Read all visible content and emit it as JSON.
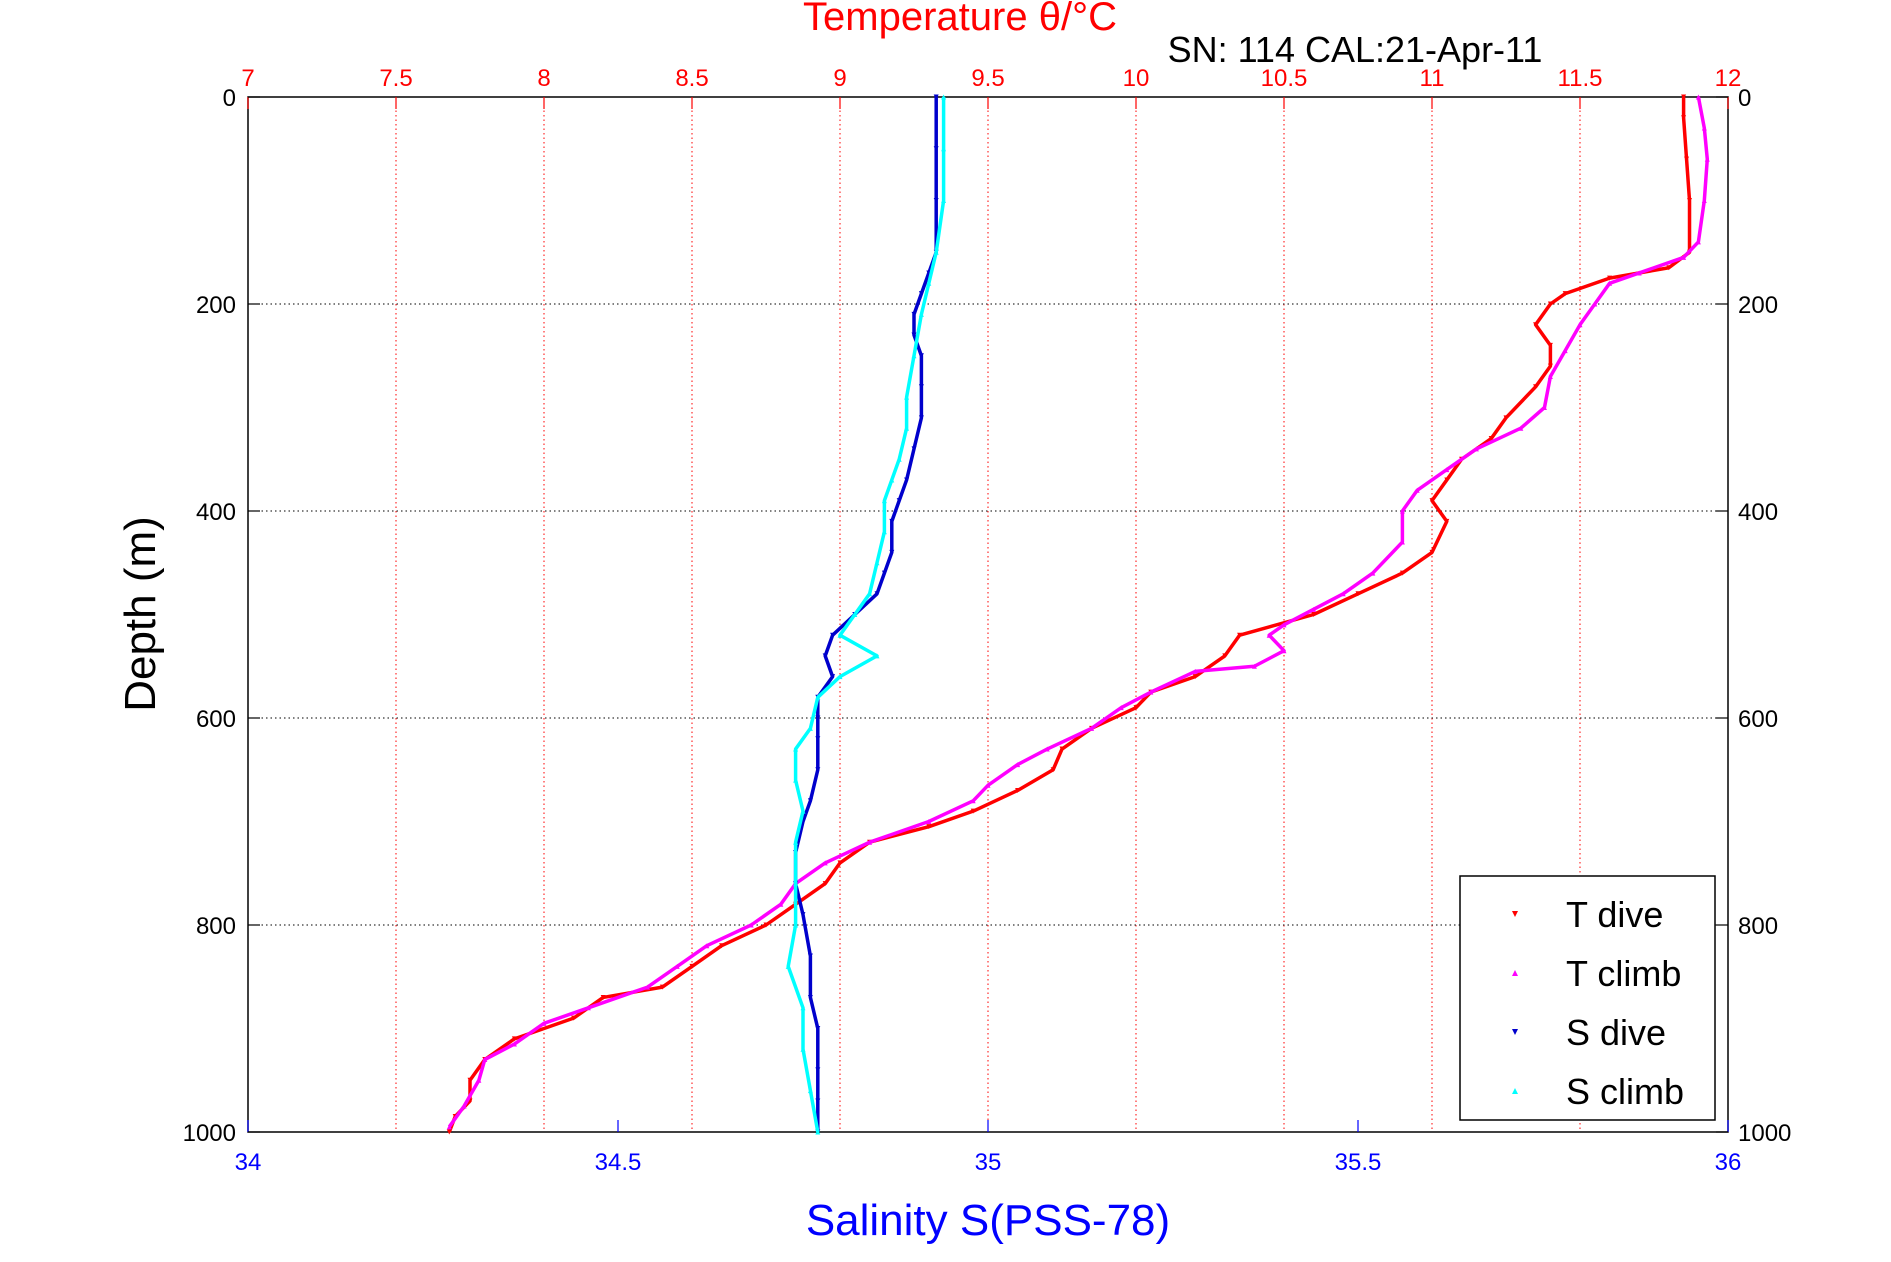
{
  "chart_data": {
    "type": "scatter",
    "title": "Temperature θ/°C",
    "subtitle": "SN: 114  CAL:21-Apr-11",
    "xlabel": "Salinity S(PSS-78)",
    "ylabel": "Depth (m)",
    "grid": true,
    "legend_position": "bottom-right",
    "axes": {
      "temperature_top": {
        "range": [
          7,
          12
        ],
        "ticks": [
          "7",
          "7.5",
          "8",
          "8.5",
          "9",
          "9.5",
          "10",
          "10.5",
          "11",
          "11.5",
          "12"
        ],
        "color": "#ff0000"
      },
      "salinity_bottom": {
        "range": [
          34,
          36
        ],
        "ticks": [
          "34",
          "34.5",
          "35",
          "35.5",
          "36"
        ],
        "color": "#0000ff"
      },
      "depth_left": {
        "range": [
          0,
          1000
        ],
        "reversed": true,
        "ticks": [
          "0",
          "200",
          "400",
          "600",
          "800",
          "1000"
        ]
      },
      "depth_right": {
        "range": [
          0,
          1000
        ],
        "reversed": true,
        "ticks": [
          "0",
          "200",
          "400",
          "600",
          "800",
          "1000"
        ]
      }
    },
    "series": [
      {
        "name": "T dive",
        "axis": "temperature_top",
        "color": "#ff0000",
        "marker": "triangle-down",
        "points": [
          [
            11.85,
            0
          ],
          [
            11.85,
            20
          ],
          [
            11.86,
            60
          ],
          [
            11.87,
            100
          ],
          [
            11.87,
            150
          ],
          [
            11.8,
            165
          ],
          [
            11.6,
            175
          ],
          [
            11.45,
            190
          ],
          [
            11.4,
            200
          ],
          [
            11.35,
            220
          ],
          [
            11.4,
            240
          ],
          [
            11.4,
            260
          ],
          [
            11.35,
            280
          ],
          [
            11.25,
            310
          ],
          [
            11.2,
            330
          ],
          [
            11.1,
            350
          ],
          [
            11.05,
            370
          ],
          [
            11.0,
            390
          ],
          [
            11.05,
            410
          ],
          [
            11.0,
            440
          ],
          [
            10.9,
            460
          ],
          [
            10.75,
            480
          ],
          [
            10.6,
            500
          ],
          [
            10.35,
            520
          ],
          [
            10.3,
            540
          ],
          [
            10.2,
            560
          ],
          [
            10.05,
            575
          ],
          [
            10.0,
            590
          ],
          [
            9.85,
            610
          ],
          [
            9.75,
            630
          ],
          [
            9.72,
            650
          ],
          [
            9.6,
            670
          ],
          [
            9.45,
            690
          ],
          [
            9.3,
            705
          ],
          [
            9.1,
            720
          ],
          [
            9.0,
            740
          ],
          [
            8.95,
            760
          ],
          [
            8.85,
            780
          ],
          [
            8.75,
            800
          ],
          [
            8.6,
            820
          ],
          [
            8.5,
            840
          ],
          [
            8.4,
            860
          ],
          [
            8.2,
            870
          ],
          [
            8.1,
            890
          ],
          [
            7.9,
            910
          ],
          [
            7.8,
            930
          ],
          [
            7.75,
            950
          ],
          [
            7.75,
            970
          ],
          [
            7.7,
            985
          ],
          [
            7.68,
            1000
          ]
        ]
      },
      {
        "name": "T climb",
        "axis": "temperature_top",
        "color": "#ff00ff",
        "marker": "triangle-up",
        "points": [
          [
            11.9,
            0
          ],
          [
            11.92,
            30
          ],
          [
            11.93,
            60
          ],
          [
            11.92,
            100
          ],
          [
            11.9,
            140
          ],
          [
            11.85,
            155
          ],
          [
            11.7,
            170
          ],
          [
            11.6,
            180
          ],
          [
            11.55,
            200
          ],
          [
            11.5,
            220
          ],
          [
            11.45,
            245
          ],
          [
            11.4,
            270
          ],
          [
            11.38,
            300
          ],
          [
            11.3,
            320
          ],
          [
            11.15,
            340
          ],
          [
            11.05,
            360
          ],
          [
            10.95,
            380
          ],
          [
            10.9,
            400
          ],
          [
            10.9,
            430
          ],
          [
            10.8,
            460
          ],
          [
            10.7,
            480
          ],
          [
            10.6,
            495
          ],
          [
            10.5,
            510
          ],
          [
            10.45,
            520
          ],
          [
            10.5,
            535
          ],
          [
            10.4,
            550
          ],
          [
            10.2,
            555
          ],
          [
            10.05,
            575
          ],
          [
            9.95,
            590
          ],
          [
            9.85,
            610
          ],
          [
            9.7,
            630
          ],
          [
            9.6,
            645
          ],
          [
            9.5,
            665
          ],
          [
            9.45,
            680
          ],
          [
            9.3,
            700
          ],
          [
            9.1,
            720
          ],
          [
            8.95,
            740
          ],
          [
            8.85,
            760
          ],
          [
            8.8,
            780
          ],
          [
            8.7,
            800
          ],
          [
            8.55,
            820
          ],
          [
            8.45,
            840
          ],
          [
            8.35,
            860
          ],
          [
            8.15,
            880
          ],
          [
            8.0,
            895
          ],
          [
            7.9,
            915
          ],
          [
            7.8,
            930
          ],
          [
            7.78,
            950
          ],
          [
            7.73,
            975
          ],
          [
            7.68,
            995
          ]
        ]
      },
      {
        "name": "S dive",
        "axis": "salinity_bottom",
        "color": "#0000cc",
        "marker": "triangle-down",
        "points": [
          [
            34.93,
            0
          ],
          [
            34.93,
            50
          ],
          [
            34.93,
            100
          ],
          [
            34.93,
            150
          ],
          [
            34.92,
            170
          ],
          [
            34.91,
            190
          ],
          [
            34.9,
            210
          ],
          [
            34.9,
            230
          ],
          [
            34.91,
            250
          ],
          [
            34.91,
            280
          ],
          [
            34.91,
            310
          ],
          [
            34.9,
            340
          ],
          [
            34.89,
            370
          ],
          [
            34.88,
            390
          ],
          [
            34.87,
            410
          ],
          [
            34.87,
            440
          ],
          [
            34.86,
            460
          ],
          [
            34.85,
            480
          ],
          [
            34.82,
            500
          ],
          [
            34.79,
            520
          ],
          [
            34.78,
            540
          ],
          [
            34.79,
            560
          ],
          [
            34.77,
            580
          ],
          [
            34.77,
            600
          ],
          [
            34.77,
            620
          ],
          [
            34.77,
            650
          ],
          [
            34.76,
            680
          ],
          [
            34.75,
            700
          ],
          [
            34.74,
            730
          ],
          [
            34.74,
            760
          ],
          [
            34.75,
            790
          ],
          [
            34.76,
            830
          ],
          [
            34.76,
            870
          ],
          [
            34.77,
            900
          ],
          [
            34.77,
            940
          ],
          [
            34.77,
            970
          ],
          [
            34.77,
            1000
          ]
        ]
      },
      {
        "name": "S climb",
        "axis": "salinity_bottom",
        "color": "#00ffff",
        "marker": "triangle-up",
        "points": [
          [
            34.94,
            0
          ],
          [
            34.94,
            50
          ],
          [
            34.94,
            100
          ],
          [
            34.93,
            150
          ],
          [
            34.92,
            180
          ],
          [
            34.91,
            210
          ],
          [
            34.9,
            250
          ],
          [
            34.89,
            290
          ],
          [
            34.89,
            320
          ],
          [
            34.88,
            350
          ],
          [
            34.87,
            370
          ],
          [
            34.86,
            390
          ],
          [
            34.86,
            420
          ],
          [
            34.85,
            450
          ],
          [
            34.84,
            480
          ],
          [
            34.82,
            500
          ],
          [
            34.8,
            520
          ],
          [
            34.85,
            540
          ],
          [
            34.8,
            560
          ],
          [
            34.77,
            580
          ],
          [
            34.76,
            610
          ],
          [
            34.74,
            630
          ],
          [
            34.74,
            660
          ],
          [
            34.75,
            690
          ],
          [
            34.74,
            720
          ],
          [
            34.74,
            760
          ],
          [
            34.74,
            800
          ],
          [
            34.73,
            840
          ],
          [
            34.75,
            880
          ],
          [
            34.75,
            920
          ],
          [
            34.76,
            960
          ],
          [
            34.77,
            1000
          ]
        ]
      }
    ]
  }
}
